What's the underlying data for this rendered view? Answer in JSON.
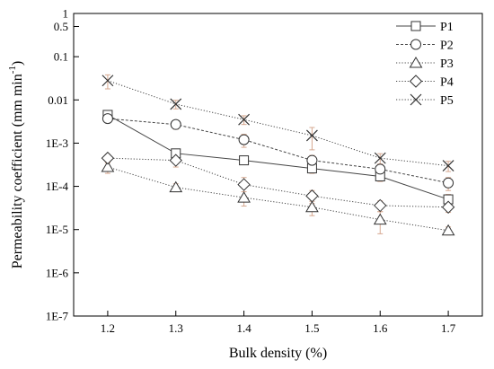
{
  "chart_data": {
    "type": "line",
    "title": "",
    "xlabel": "Bulk density (%)",
    "ylabel_main": "Permeability coefficient (mm min",
    "ylabel_sup": "-1",
    "ylabel_close": ")",
    "xscale": "linear",
    "yscale": "log",
    "xlim": [
      1.15,
      1.75
    ],
    "ylim": [
      1e-07,
      1
    ],
    "x": [
      1.2,
      1.3,
      1.4,
      1.5,
      1.6,
      1.7
    ],
    "x_tick_labels": [
      "1.2",
      "1.3",
      "1.4",
      "1.5",
      "1.6",
      "1.7"
    ],
    "y_ticks": [
      1e-07,
      1e-06,
      1e-05,
      0.0001,
      0.001,
      0.01,
      0.1,
      0.5,
      1
    ],
    "y_tick_labels": [
      "1E-7",
      "1E-6",
      "1E-5",
      "1E-4",
      "1E-3",
      "0.01",
      "0.1",
      "0.5",
      "1"
    ],
    "legend_position": "top-right",
    "grid": false,
    "series": [
      {
        "name": "P1",
        "marker": "square",
        "line": "solid",
        "values": [
          0.0045,
          0.00058,
          0.0004,
          0.00026,
          0.00017,
          5e-05
        ]
      },
      {
        "name": "P2",
        "marker": "circle",
        "line": "dashed",
        "values": [
          0.0037,
          0.0027,
          0.0012,
          0.0004,
          0.00025,
          0.00012
        ]
      },
      {
        "name": "P3",
        "marker": "triangle",
        "line": "dotted",
        "values": [
          0.00028,
          9.5e-05,
          5.5e-05,
          3.3e-05,
          1.7e-05,
          9.5e-06
        ]
      },
      {
        "name": "P4",
        "marker": "diamond",
        "line": "dotted",
        "values": [
          0.00045,
          0.0004,
          0.00011,
          6e-05,
          3.6e-05,
          3.3e-05
        ]
      },
      {
        "name": "P5",
        "marker": "cross",
        "line": "dotted",
        "values": [
          0.028,
          0.008,
          0.0035,
          0.0015,
          0.00045,
          0.0003
        ]
      }
    ],
    "error_bars": {
      "color": "#d6a890",
      "P1": [
        0.0008,
        0.0001,
        8e-05,
        6e-05,
        4e-05,
        1.5e-05
      ],
      "P2": [
        0.0007,
        0.0006,
        0.0004,
        0.00012,
        7e-05,
        4e-05
      ],
      "P3": [
        8e-05,
        2e-05,
        2e-05,
        1.2e-05,
        9e-06,
        2e-06
      ],
      "P4": [
        0.0001,
        0.00012,
        5e-05,
        2e-05,
        1e-05,
        8e-06
      ],
      "P5": [
        0.01,
        0.0018,
        0.0008,
        0.0008,
        0.00012,
        8e-05
      ]
    }
  }
}
